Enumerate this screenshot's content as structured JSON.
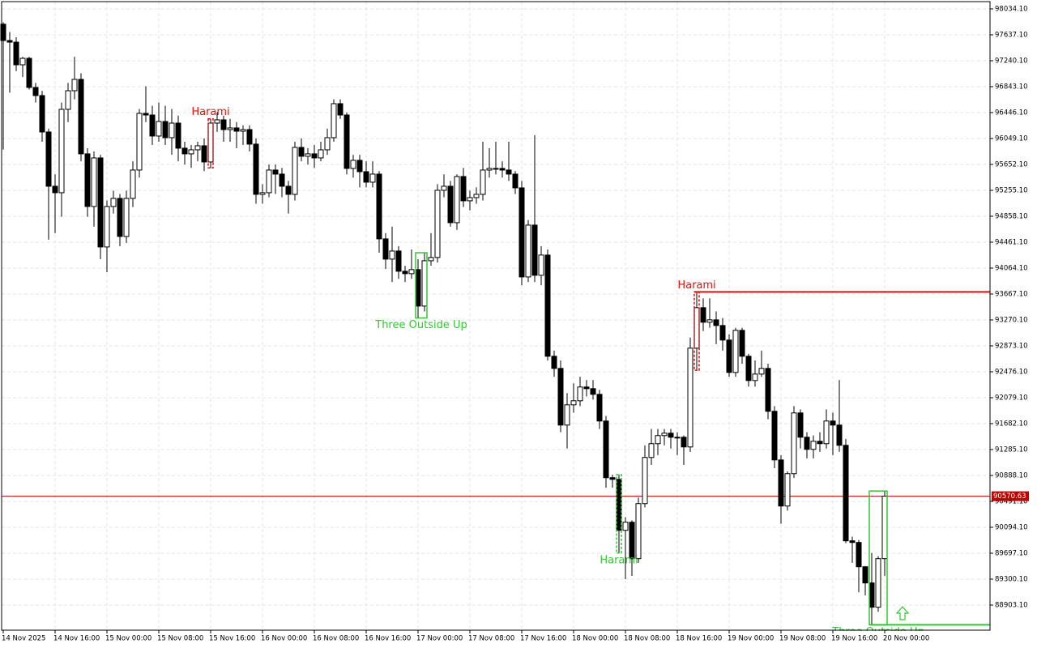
{
  "chart_data": {
    "type": "candlestick",
    "grid": true,
    "bull_color": "#ffffff",
    "bear_color": "#000000",
    "current_price_color": "#c00000",
    "ylim": [
      88518.5,
      98145.8
    ],
    "yticks": [
      {
        "value": 98034.1,
        "label": "98034.10"
      },
      {
        "value": 97637.1,
        "label": "97637.10"
      },
      {
        "value": 97240.1,
        "label": "97240.10"
      },
      {
        "value": 96843.1,
        "label": "96843.10"
      },
      {
        "value": 96446.1,
        "label": "96446.10"
      },
      {
        "value": 96049.1,
        "label": "96049.10"
      },
      {
        "value": 95652.1,
        "label": "95652.10"
      },
      {
        "value": 95255.1,
        "label": "95255.10"
      },
      {
        "value": 94858.1,
        "label": "94858.10"
      },
      {
        "value": 94461.1,
        "label": "94461.10"
      },
      {
        "value": 94064.1,
        "label": "94064.10"
      },
      {
        "value": 93667.1,
        "label": "93667.10"
      },
      {
        "value": 93270.1,
        "label": "93270.10"
      },
      {
        "value": 92873.1,
        "label": "92873.10"
      },
      {
        "value": 92476.1,
        "label": "92476.10"
      },
      {
        "value": 92079.1,
        "label": "92079.10"
      },
      {
        "value": 91682.1,
        "label": "91682.10"
      },
      {
        "value": 91285.1,
        "label": "91285.10"
      },
      {
        "value": 90888.1,
        "label": "90888.10"
      },
      {
        "value": 90491.1,
        "label": "90491.10"
      },
      {
        "value": 90094.1,
        "label": "90094.10"
      },
      {
        "value": 89697.1,
        "label": "89697.10"
      },
      {
        "value": 89300.1,
        "label": "89300.10"
      },
      {
        "value": 88903.1,
        "label": "88903.10"
      }
    ],
    "current_price": 90570.63,
    "categories": [
      "14 Nov 2025",
      null,
      null,
      null,
      null,
      null,
      null,
      null,
      "14 Nov 16:00",
      null,
      null,
      null,
      null,
      null,
      null,
      null,
      "15 Nov 00:00",
      null,
      null,
      null,
      null,
      null,
      null,
      null,
      "15 Nov 08:00",
      null,
      null,
      null,
      null,
      null,
      null,
      null,
      "15 Nov 16:00",
      null,
      null,
      null,
      null,
      null,
      null,
      null,
      "16 Nov 00:00",
      null,
      null,
      null,
      null,
      null,
      null,
      null,
      "16 Nov 08:00",
      null,
      null,
      null,
      null,
      null,
      null,
      null,
      "16 Nov 16:00",
      null,
      null,
      null,
      null,
      null,
      null,
      null,
      "17 Nov 00:00",
      null,
      null,
      null,
      null,
      null,
      null,
      null,
      "17 Nov 08:00",
      null,
      null,
      null,
      null,
      null,
      null,
      null,
      "17 Nov 16:00",
      null,
      null,
      null,
      null,
      null,
      null,
      null,
      "18 Nov 00:00",
      null,
      null,
      null,
      null,
      null,
      null,
      null,
      "18 Nov 08:00",
      null,
      null,
      null,
      null,
      null,
      null,
      null,
      "18 Nov 16:00",
      null,
      null,
      null,
      null,
      null,
      null,
      null,
      "19 Nov 00:00",
      null,
      null,
      null,
      null,
      null,
      null,
      null,
      "19 Nov 08:00",
      null,
      null,
      null,
      null,
      null,
      null,
      null,
      "19 Nov 16:00",
      null,
      null,
      null,
      null,
      null,
      null,
      null,
      "20 Nov 00:00"
    ],
    "ohlc": [
      [
        97800,
        97830,
        95880,
        97550
      ],
      [
        97550,
        97680,
        96750,
        97525
      ],
      [
        97525,
        97600,
        97080,
        97178
      ],
      [
        97178,
        97300,
        96990,
        97277
      ],
      [
        97277,
        97300,
        96800,
        96831
      ],
      [
        96831,
        96900,
        96600,
        96707
      ],
      [
        96707,
        96780,
        96000,
        96149
      ],
      [
        96149,
        96200,
        94500,
        95318
      ],
      [
        95318,
        95500,
        94600,
        95219
      ],
      [
        95219,
        96600,
        94850,
        96496
      ],
      [
        96496,
        96900,
        96300,
        96781
      ],
      [
        96781,
        97300,
        96650,
        96955
      ],
      [
        96955,
        97050,
        95700,
        95814
      ],
      [
        95814,
        95900,
        94850,
        95008
      ],
      [
        95008,
        95850,
        94700,
        95752
      ],
      [
        95752,
        95800,
        94200,
        94388
      ],
      [
        94388,
        95100,
        94000,
        95008
      ],
      [
        95008,
        95250,
        94900,
        95132
      ],
      [
        95132,
        95200,
        94400,
        94549
      ],
      [
        94549,
        95250,
        94450,
        95132
      ],
      [
        95132,
        95700,
        95000,
        95566
      ],
      [
        95566,
        96500,
        95450,
        96434
      ],
      [
        96434,
        96850,
        96300,
        96409
      ],
      [
        96409,
        96550,
        95950,
        96087
      ],
      [
        96087,
        96600,
        96000,
        96310
      ],
      [
        96310,
        96550,
        95950,
        96062
      ],
      [
        96062,
        96500,
        95800,
        96285
      ],
      [
        96285,
        96400,
        95700,
        95901
      ],
      [
        95901,
        96000,
        95650,
        95814
      ],
      [
        95814,
        95950,
        95600,
        95876
      ],
      [
        95876,
        96000,
        95700,
        95938
      ],
      [
        95938,
        96050,
        95550,
        95690
      ],
      [
        95690,
        96350,
        95600,
        96285
      ],
      [
        96285,
        96450,
        96150,
        96335
      ],
      [
        96335,
        96400,
        96000,
        96186
      ],
      [
        96186,
        96350,
        96000,
        96211
      ],
      [
        96211,
        96300,
        95900,
        96161
      ],
      [
        96161,
        96250,
        95950,
        96186
      ],
      [
        96186,
        96250,
        95850,
        95963
      ],
      [
        95963,
        96050,
        95050,
        95194
      ],
      [
        95194,
        95350,
        95050,
        95219
      ],
      [
        95219,
        95650,
        95150,
        95566
      ],
      [
        95566,
        95650,
        95200,
        95504
      ],
      [
        95504,
        95600,
        95150,
        95318
      ],
      [
        95318,
        95400,
        94900,
        95194
      ],
      [
        95194,
        96000,
        95100,
        95913
      ],
      [
        95913,
        96050,
        95700,
        95777
      ],
      [
        95777,
        95900,
        95650,
        95814
      ],
      [
        95814,
        95950,
        95600,
        95752
      ],
      [
        95752,
        96000,
        95700,
        95876
      ],
      [
        95876,
        96200,
        95800,
        96062
      ],
      [
        96062,
        96650,
        96000,
        96583
      ],
      [
        96583,
        96650,
        96350,
        96409
      ],
      [
        96409,
        96450,
        95500,
        95591
      ],
      [
        95591,
        95800,
        95450,
        95715
      ],
      [
        95715,
        95800,
        95300,
        95541
      ],
      [
        95541,
        95700,
        95300,
        95380
      ],
      [
        95380,
        95700,
        95300,
        95504
      ],
      [
        95504,
        95550,
        94300,
        94512
      ],
      [
        94512,
        94600,
        94050,
        94202
      ],
      [
        94202,
        94700,
        93850,
        94326
      ],
      [
        94326,
        94400,
        93900,
        94016
      ],
      [
        94016,
        94100,
        93850,
        93979
      ],
      [
        93979,
        94350,
        93900,
        94041
      ],
      [
        94041,
        94200,
        93300,
        93483
      ],
      [
        93483,
        94300,
        93400,
        94177
      ],
      [
        94177,
        94600,
        94100,
        94227
      ],
      [
        94227,
        95350,
        94150,
        95256
      ],
      [
        95256,
        95500,
        95150,
        95318
      ],
      [
        95318,
        95400,
        94700,
        94760
      ],
      [
        94760,
        95500,
        94650,
        95467
      ],
      [
        95467,
        95600,
        95000,
        95095
      ],
      [
        95095,
        95250,
        94950,
        95144
      ],
      [
        95144,
        95300,
        95050,
        95194
      ],
      [
        95194,
        96000,
        95100,
        95566
      ],
      [
        95566,
        95900,
        95450,
        95591
      ],
      [
        95591,
        96000,
        95500,
        95591
      ],
      [
        95591,
        95700,
        95450,
        95566
      ],
      [
        95566,
        96000,
        95400,
        95504
      ],
      [
        95504,
        95550,
        95200,
        95293
      ],
      [
        95293,
        95400,
        93800,
        93929
      ],
      [
        93929,
        94800,
        93850,
        94723
      ],
      [
        94723,
        96100,
        93850,
        93954
      ],
      [
        93954,
        94400,
        93800,
        94264
      ],
      [
        94264,
        94350,
        92650,
        92714
      ],
      [
        92714,
        92800,
        92400,
        92528
      ],
      [
        92528,
        92650,
        91550,
        91660
      ],
      [
        91660,
        92150,
        91300,
        91970
      ],
      [
        91970,
        92300,
        91850,
        92032
      ],
      [
        92032,
        92400,
        91950,
        92243
      ],
      [
        92243,
        92350,
        92100,
        92218
      ],
      [
        92218,
        92350,
        92050,
        92131
      ],
      [
        92131,
        92200,
        91600,
        91722
      ],
      [
        91722,
        91800,
        90700,
        90854
      ],
      [
        90854,
        90900,
        90700,
        90829
      ],
      [
        90829,
        90900,
        89700,
        90048
      ],
      [
        90048,
        90250,
        89300,
        90172
      ],
      [
        90172,
        90200,
        89350,
        89614
      ],
      [
        89614,
        90550,
        89550,
        90457
      ],
      [
        90457,
        91350,
        90400,
        91164
      ],
      [
        91164,
        91600,
        91050,
        91375
      ],
      [
        91375,
        91600,
        91200,
        91499
      ],
      [
        91499,
        91600,
        91350,
        91536
      ],
      [
        91536,
        91600,
        91300,
        91474
      ],
      [
        91474,
        91550,
        91200,
        91474
      ],
      [
        91474,
        91500,
        91050,
        91325
      ],
      [
        91325,
        93000,
        91250,
        92838
      ],
      [
        92838,
        93700,
        92500,
        93458
      ],
      [
        93458,
        93600,
        93100,
        93235
      ],
      [
        93235,
        93600,
        93150,
        93272
      ],
      [
        93272,
        93400,
        92900,
        93185
      ],
      [
        93185,
        93300,
        92800,
        92962
      ],
      [
        92962,
        93050,
        92400,
        92466
      ],
      [
        92466,
        93150,
        92400,
        93111
      ],
      [
        93111,
        93150,
        92600,
        92714
      ],
      [
        92714,
        92750,
        92250,
        92342
      ],
      [
        92342,
        92650,
        92250,
        92441
      ],
      [
        92441,
        92800,
        92400,
        92528
      ],
      [
        92528,
        92600,
        91750,
        91871
      ],
      [
        91871,
        91950,
        91000,
        91126
      ],
      [
        91126,
        91200,
        90150,
        90420
      ],
      [
        90420,
        90950,
        90350,
        90916
      ],
      [
        90916,
        91950,
        90850,
        91846
      ],
      [
        91846,
        91900,
        91300,
        91474
      ],
      [
        91474,
        91550,
        91150,
        91288
      ],
      [
        91288,
        91500,
        91150,
        91412
      ],
      [
        91412,
        91550,
        91250,
        91375
      ],
      [
        91375,
        91900,
        91300,
        91722
      ],
      [
        91722,
        91850,
        91200,
        91660
      ],
      [
        91660,
        92350,
        91250,
        91350
      ],
      [
        91350,
        91450,
        89850,
        89887
      ],
      [
        89887,
        89950,
        89550,
        89862
      ],
      [
        89862,
        89900,
        89100,
        89490
      ],
      [
        89490,
        89500,
        89050,
        89242
      ],
      [
        89242,
        89700,
        88600,
        88870
      ],
      [
        88870,
        89650,
        88800,
        89614
      ],
      [
        89614,
        90650,
        89350,
        90570.63
      ]
    ],
    "annotations": [
      {
        "text": "Harami",
        "color": "#e01010"
      },
      {
        "text": "Three Outside Up",
        "color": "#33c633"
      },
      {
        "text": "Harami",
        "color": "#33c633"
      },
      {
        "text": "Harami",
        "color": "#e01010"
      },
      {
        "text": "Three Outside Up",
        "color": "#33c633"
      }
    ]
  }
}
